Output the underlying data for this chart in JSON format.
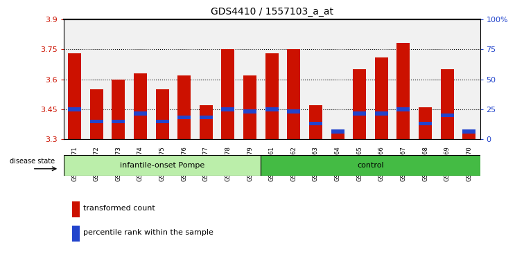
{
  "title": "GDS4410 / 1557103_a_at",
  "samples": [
    "GSM947471",
    "GSM947472",
    "GSM947473",
    "GSM947474",
    "GSM947475",
    "GSM947476",
    "GSM947477",
    "GSM947478",
    "GSM947479",
    "GSM947461",
    "GSM947462",
    "GSM947463",
    "GSM947464",
    "GSM947465",
    "GSM947466",
    "GSM947467",
    "GSM947468",
    "GSM947469",
    "GSM947470"
  ],
  "red_values": [
    3.73,
    3.55,
    3.6,
    3.63,
    3.55,
    3.62,
    3.47,
    3.75,
    3.62,
    3.73,
    3.75,
    3.47,
    3.35,
    3.65,
    3.71,
    3.78,
    3.46,
    3.65,
    3.35
  ],
  "blue_heights": [
    0.019,
    0.019,
    0.019,
    0.019,
    0.019,
    0.019,
    0.019,
    0.019,
    0.019,
    0.019,
    0.019,
    0.019,
    0.019,
    0.019,
    0.019,
    0.019,
    0.019,
    0.019,
    0.019
  ],
  "blue_positions": [
    3.44,
    3.38,
    3.38,
    3.42,
    3.38,
    3.4,
    3.4,
    3.44,
    3.43,
    3.44,
    3.43,
    3.37,
    3.33,
    3.42,
    3.42,
    3.44,
    3.37,
    3.41,
    3.33
  ],
  "group1_label": "infantile-onset Pompe",
  "group2_label": "control",
  "group1_count": 9,
  "group2_count": 10,
  "ymin": 3.3,
  "ymax": 3.9,
  "yticks": [
    3.3,
    3.45,
    3.6,
    3.75,
    3.9
  ],
  "ytick_labels": [
    "3.3",
    "3.45",
    "3.6",
    "3.75",
    "3.9"
  ],
  "y2ticks_pct": [
    0,
    25,
    50,
    75,
    100
  ],
  "y2tick_labels": [
    "0",
    "25",
    "50",
    "75",
    "100%"
  ],
  "hlines": [
    3.45,
    3.6,
    3.75
  ],
  "bar_color": "#cc1100",
  "blue_color": "#2244cc",
  "group1_color": "#bbeeaa",
  "group2_color": "#44bb44",
  "bar_width": 0.6,
  "base_value": 3.3,
  "tick_color_left": "#cc1100",
  "tick_color_right": "#2244cc"
}
